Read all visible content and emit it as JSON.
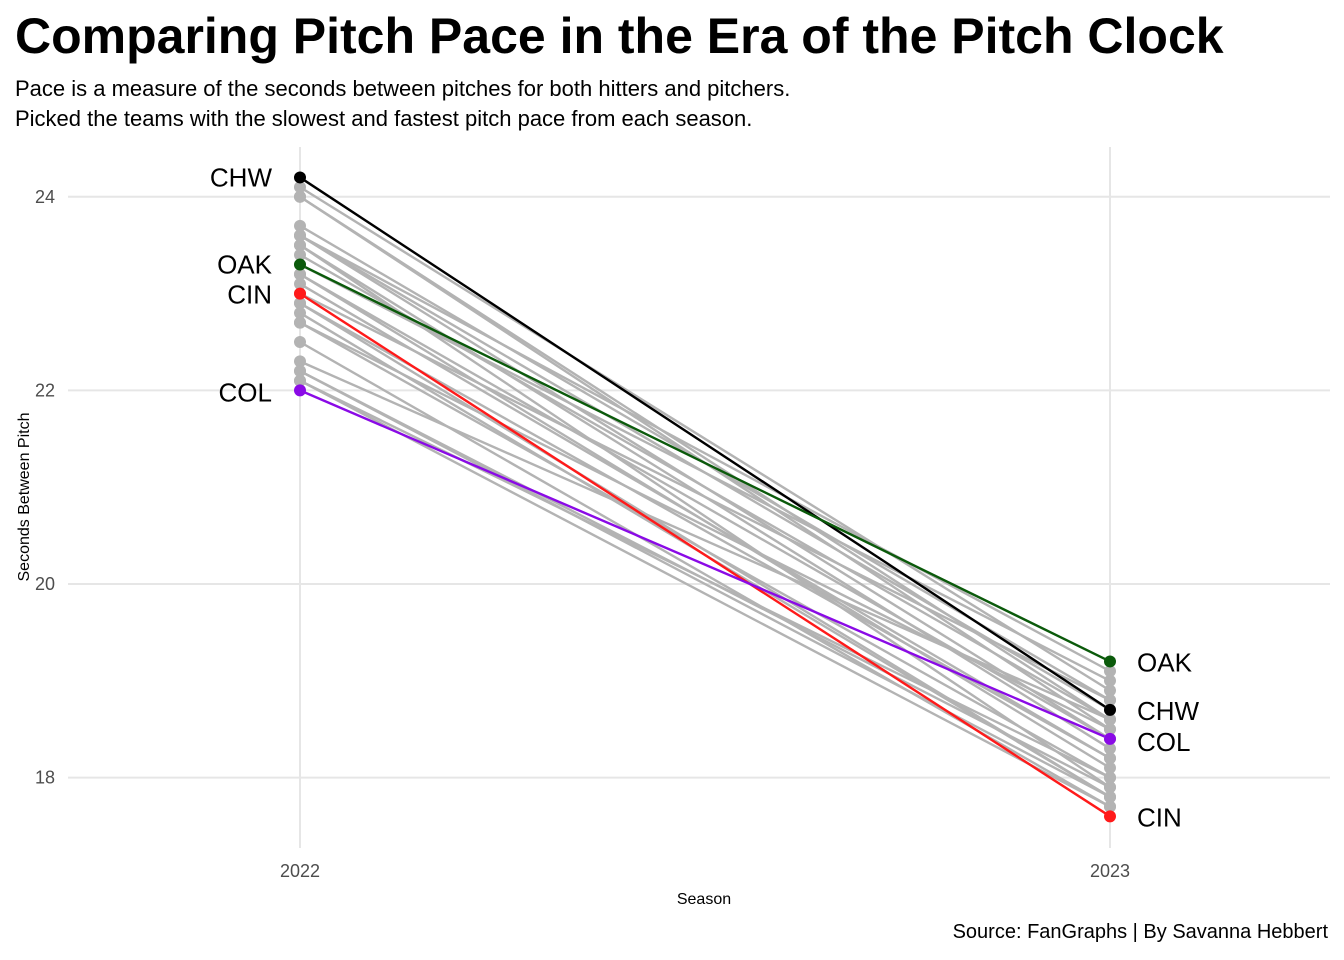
{
  "header": {
    "title": "Comparing Pitch Pace in the Era of the Pitch Clock",
    "subtitle_line1": "Pace is a measure of the seconds between pitches for both hitters and pitchers.",
    "subtitle_line2": "Picked the teams with the slowest and fastest pitch pace from each season."
  },
  "caption": "Source: FanGraphs | By Savanna Hebbert",
  "chart_data": {
    "type": "line",
    "title": "Comparing Pitch Pace in the Era of the Pitch Clock",
    "xlabel": "Season",
    "ylabel": "Seconds Between Pitch",
    "categories": [
      "2022",
      "2023"
    ],
    "y_ticks": [
      18,
      20,
      22,
      24
    ],
    "ylim": [
      17.3,
      24.5
    ],
    "grid": true,
    "legend": "none",
    "highlighted_series": [
      {
        "name": "CHW",
        "values": [
          24.2,
          18.7
        ],
        "color": "#000000"
      },
      {
        "name": "OAK",
        "values": [
          23.3,
          19.2
        ],
        "color": "#0b5a0b"
      },
      {
        "name": "CIN",
        "values": [
          23.0,
          17.6
        ],
        "color": "#ff1a1a"
      },
      {
        "name": "COL",
        "values": [
          22.0,
          18.4
        ],
        "color": "#8a0ae6"
      }
    ],
    "background_series_color": "#b3b3b3",
    "background_series": [
      [
        24.1,
        18.9
      ],
      [
        24.0,
        18.6
      ],
      [
        24.0,
        18.5
      ],
      [
        23.7,
        18.8
      ],
      [
        23.6,
        19.1
      ],
      [
        23.6,
        18.7
      ],
      [
        23.5,
        18.3
      ],
      [
        23.5,
        17.9
      ],
      [
        23.4,
        18.6
      ],
      [
        23.2,
        18.4
      ],
      [
        23.2,
        18.1
      ],
      [
        23.0,
        18.8
      ],
      [
        22.9,
        18.2
      ],
      [
        22.8,
        17.8
      ],
      [
        22.7,
        18.5
      ],
      [
        22.7,
        18.0
      ],
      [
        22.5,
        17.7
      ],
      [
        22.3,
        18.6
      ],
      [
        22.2,
        17.9
      ],
      [
        22.2,
        17.8
      ],
      [
        22.1,
        17.7
      ],
      [
        22.1,
        18.0
      ],
      [
        23.1,
        18.2
      ],
      [
        23.6,
        18.4
      ],
      [
        22.9,
        17.8
      ],
      [
        23.3,
        19.0
      ]
    ]
  }
}
